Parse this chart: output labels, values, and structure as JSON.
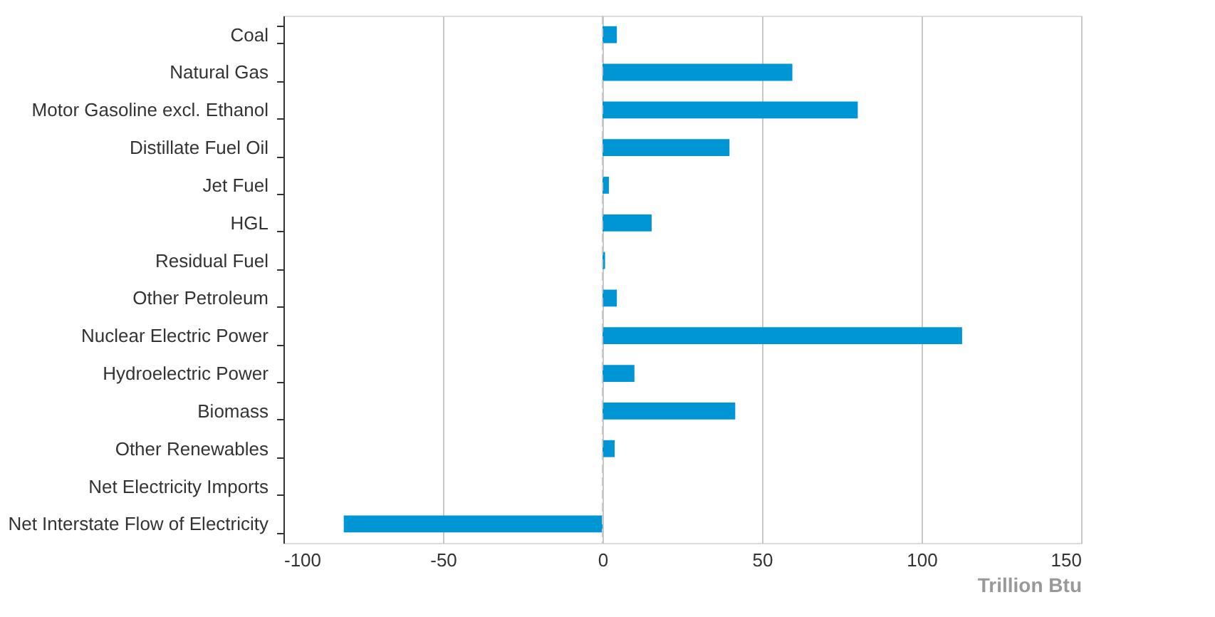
{
  "chart_data": {
    "type": "bar",
    "orientation": "horizontal",
    "xlabel": "Trillion Btu",
    "categories": [
      "Coal",
      "Natural Gas",
      "Motor Gasoline excl. Ethanol",
      "Distillate Fuel Oil",
      "Jet Fuel",
      "HGL",
      "Residual Fuel",
      "Other Petroleum",
      "Nuclear Electric Power",
      "Hydroelectric Power",
      "Biomass",
      "Other Renewables",
      "Net Electricity Imports",
      "Net Interstate Flow of Electricity"
    ],
    "values": [
      4.5,
      59.5,
      80,
      39.8,
      2,
      15.4,
      0.8,
      4.5,
      112.7,
      10,
      41.6,
      3.8,
      0,
      -81.1
    ],
    "color": "#0096d6",
    "xlim": [
      -100,
      150
    ],
    "xticks": [
      -100,
      -50,
      0,
      50,
      100,
      150
    ],
    "grid": "x",
    "ref_lines": [
      {
        "axis": "x",
        "value": 0,
        "color": "#c8c8c8",
        "line_style": "dashed"
      }
    ]
  }
}
